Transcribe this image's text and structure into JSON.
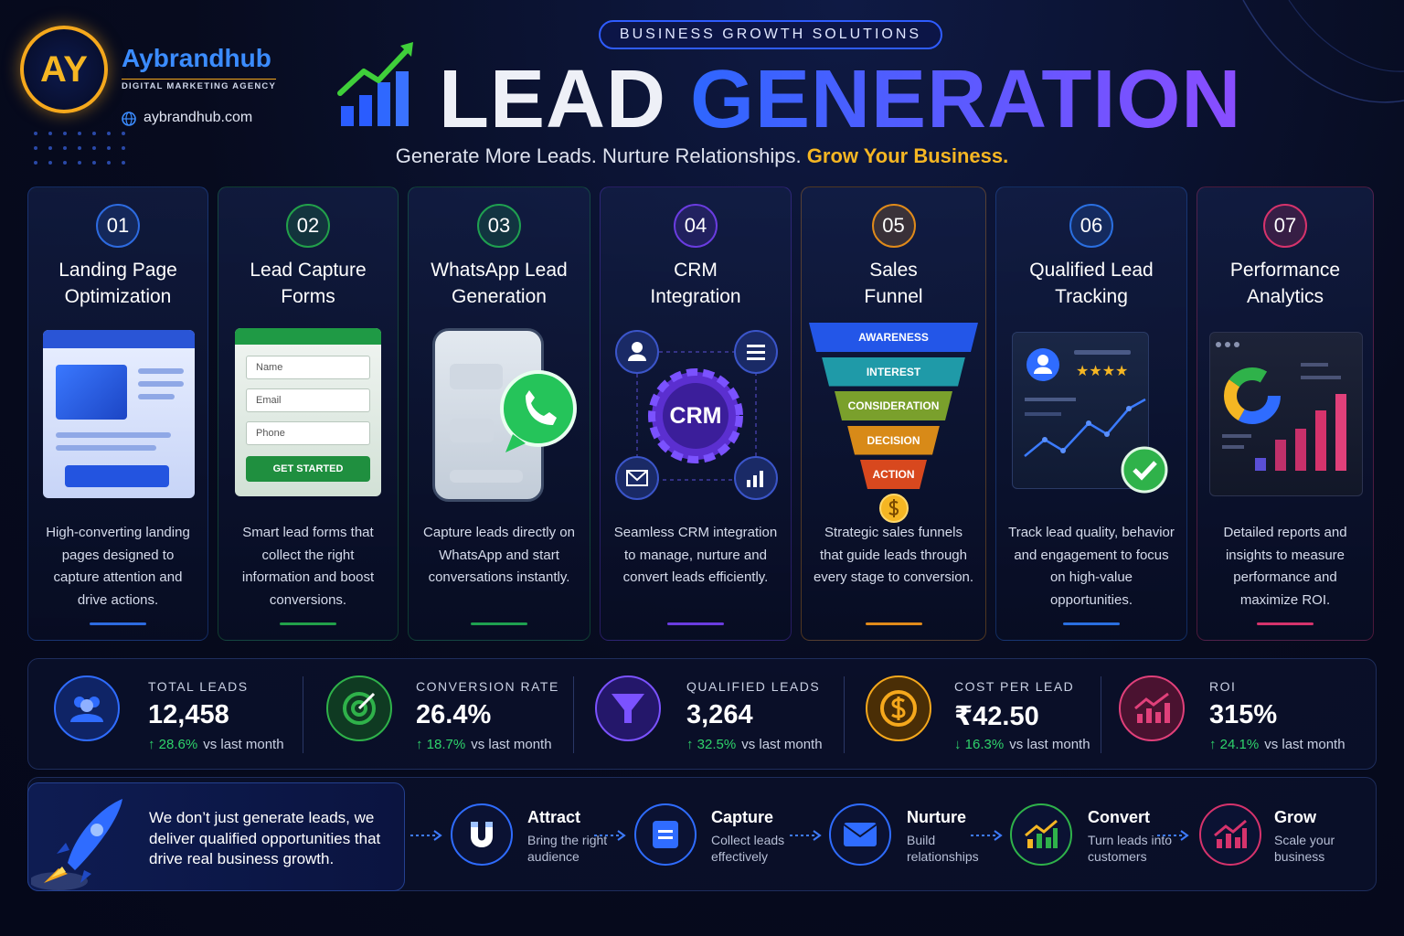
{
  "brand": {
    "logo": "AY",
    "name": "Aybrandhub",
    "tagline": "DIGITAL MARKETING AGENCY",
    "website": "aybrandhub.com"
  },
  "header": {
    "badge": "BUSINESS GROWTH SOLUTIONS",
    "title_lead": "LEAD",
    "title_generation": "GENERATION",
    "subtitle": "Generate More Leads. Nurture Relationships.",
    "subtitle_highlight": "Grow Your Business."
  },
  "cards": [
    {
      "number": "01",
      "title": [
        "Landing Page",
        "Optimization"
      ],
      "description": "High-converting landing pages designed to capture attention and drive actions."
    },
    {
      "number": "02",
      "title": [
        "Lead Capture",
        "Forms"
      ],
      "description": "Smart lead forms that collect the right information and boost conversions."
    },
    {
      "number": "03",
      "title": [
        "WhatsApp Lead",
        "Generation"
      ],
      "description": "Capture leads directly on WhatsApp and start conversations instantly."
    },
    {
      "number": "04",
      "title": [
        "CRM",
        "Integration"
      ],
      "description": "Seamless CRM integration to manage, nurture and convert leads efficiently."
    },
    {
      "number": "05",
      "title": [
        "Sales",
        "Funnel"
      ],
      "description": "Strategic sales funnels that guide leads through every stage to conversion."
    },
    {
      "number": "06",
      "title": [
        "Qualified Lead",
        "Tracking"
      ],
      "description": "Track lead quality, behavior and engagement to focus on high-value opportunities."
    },
    {
      "number": "07",
      "title": [
        "Performance",
        "Analytics"
      ],
      "description": "Detailed reports and insights to measure performance and maximize ROI."
    }
  ],
  "form": {
    "fields": [
      "Name",
      "Email",
      "Phone"
    ],
    "button": "GET STARTED"
  },
  "crm": {
    "label": "CRM"
  },
  "funnel": {
    "stages": [
      "AWARENESS",
      "INTEREST",
      "CONSIDERATION",
      "DECISION",
      "ACTION"
    ]
  },
  "stats": [
    {
      "label": "TOTAL LEADS",
      "value": "12,458",
      "change": "↑ 28.6%",
      "comparison": "vs last month"
    },
    {
      "label": "CONVERSION RATE",
      "value": "26.4%",
      "change": "↑ 18.7%",
      "comparison": "vs last month"
    },
    {
      "label": "QUALIFIED LEADS",
      "value": "3,264",
      "change": "↑ 32.5%",
      "comparison": "vs last month"
    },
    {
      "label": "COST PER LEAD",
      "value": "₹42.50",
      "change": "↓ 16.3%",
      "comparison": "vs last month"
    },
    {
      "label": "ROI",
      "value": "315%",
      "change": "↑ 24.1%",
      "comparison": "vs last month"
    }
  ],
  "footer": {
    "message": "We don’t just generate leads, we deliver qualified opportunities that drive real business growth.",
    "steps": [
      {
        "title": "Attract",
        "description": "Bring the right audience"
      },
      {
        "title": "Capture",
        "description": "Collect leads effectively"
      },
      {
        "title": "Nurture",
        "description": "Build relationships"
      },
      {
        "title": "Convert",
        "description": "Turn leads into customers"
      },
      {
        "title": "Grow",
        "description": "Scale your business"
      }
    ]
  }
}
